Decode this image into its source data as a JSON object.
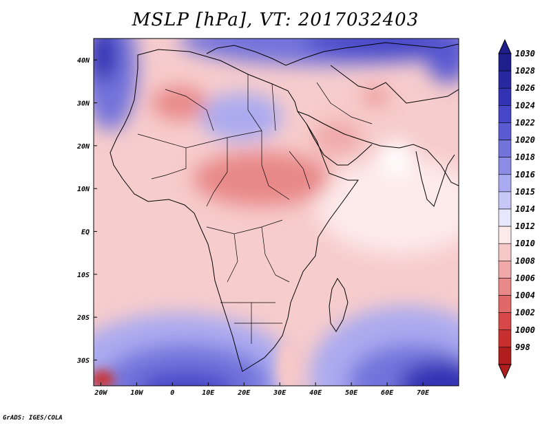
{
  "title": "MSLP [hPa], VT: 2017032403",
  "footer": "GrADS: IGES/COLA",
  "map": {
    "lon_range": [
      -22,
      80
    ],
    "lat_range": [
      -36,
      45
    ],
    "lat_ticks": [
      {
        "lat": 40,
        "label": "40N"
      },
      {
        "lat": 30,
        "label": "30N"
      },
      {
        "lat": 20,
        "label": "20N"
      },
      {
        "lat": 10,
        "label": "10N"
      },
      {
        "lat": 0,
        "label": "EQ"
      },
      {
        "lat": -10,
        "label": "10S"
      },
      {
        "lat": -20,
        "label": "20S"
      },
      {
        "lat": -30,
        "label": "30S"
      }
    ],
    "lon_ticks": [
      {
        "lon": -20,
        "label": "20W"
      },
      {
        "lon": -10,
        "label": "10W"
      },
      {
        "lon": 0,
        "label": "0"
      },
      {
        "lon": 10,
        "label": "10E"
      },
      {
        "lon": 20,
        "label": "20E"
      },
      {
        "lon": 30,
        "label": "30E"
      },
      {
        "lon": 40,
        "label": "40E"
      },
      {
        "lon": 50,
        "label": "50E"
      },
      {
        "lon": 60,
        "label": "60E"
      },
      {
        "lon": 70,
        "label": "70E"
      }
    ]
  },
  "colorbar": {
    "levels": [
      {
        "label": "1030",
        "color": "#1e1e8c"
      },
      {
        "label": "1028",
        "color": "#2828a0"
      },
      {
        "label": "1026",
        "color": "#3232b4"
      },
      {
        "label": "1024",
        "color": "#4646c8"
      },
      {
        "label": "1022",
        "color": "#5a5ad2"
      },
      {
        "label": "1020",
        "color": "#7373dc"
      },
      {
        "label": "1018",
        "color": "#8c8ce6"
      },
      {
        "label": "1016",
        "color": "#aaaaf0"
      },
      {
        "label": "1015",
        "color": "#c8c8f8"
      },
      {
        "label": "1014",
        "color": "#e6e6fc"
      },
      {
        "label": "1012",
        "color": "#fdeaea"
      },
      {
        "label": "1010",
        "color": "#f7c8c8"
      },
      {
        "label": "1008",
        "color": "#f0a8a8"
      },
      {
        "label": "1006",
        "color": "#e88888"
      },
      {
        "label": "1004",
        "color": "#e06868"
      },
      {
        "label": "1002",
        "color": "#d84848"
      },
      {
        "label": "1000",
        "color": "#c83030"
      },
      {
        "label": "998",
        "color": "#b01e1e"
      }
    ]
  }
}
